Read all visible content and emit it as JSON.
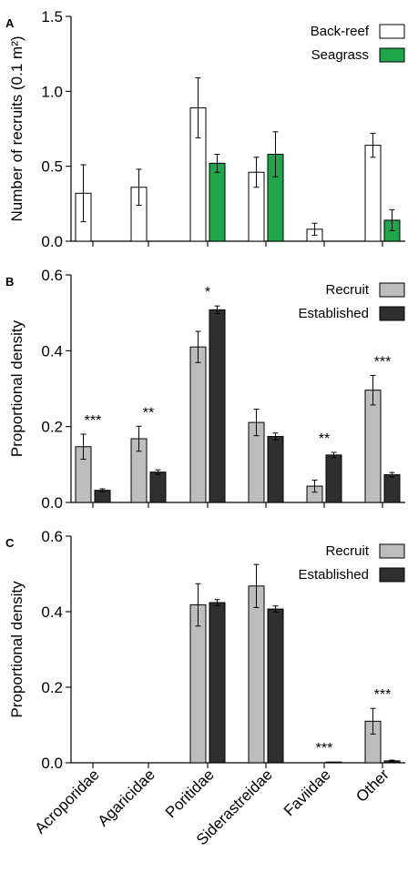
{
  "colors": {
    "back_reef": "#ffffff",
    "seagrass": "#1fa64a",
    "recruit": "#bdbdbd",
    "established": "#2f2f2f",
    "axis": "#000000"
  },
  "x_tick_labels": [
    "Acroporidae",
    "Agaricidae",
    "Poritidae",
    "Siderastreidae",
    "Faviidae",
    "Other"
  ],
  "chart_data": [
    {
      "panel_label": "A",
      "type": "bar",
      "ylabel": "Number of recruits (0.1 m²)",
      "ylim": [
        0,
        1.5
      ],
      "yticks": [
        0.0,
        0.5,
        1.0,
        1.5
      ],
      "ytick_labels": [
        "0.0",
        "0.5",
        "1.0",
        "1.5"
      ],
      "categories": [
        "Acroporidae",
        "Agaricidae",
        "Poritidae",
        "Siderastreidae",
        "Faviidae",
        "Other"
      ],
      "legend_position": "top-right",
      "series": [
        {
          "name": "Back-reef",
          "color": "#ffffff",
          "values": [
            0.32,
            0.36,
            0.89,
            0.46,
            0.08,
            0.64
          ],
          "errors": [
            0.19,
            0.12,
            0.2,
            0.1,
            0.04,
            0.08
          ]
        },
        {
          "name": "Seagrass",
          "color": "#1fa64a",
          "values": [
            0.0,
            0.0,
            0.52,
            0.58,
            0.0,
            0.14
          ],
          "errors": [
            0.0,
            0.0,
            0.06,
            0.15,
            0.0,
            0.07
          ]
        }
      ],
      "annotations": []
    },
    {
      "panel_label": "B",
      "type": "bar",
      "ylabel": "Proportional density",
      "ylim": [
        0,
        0.6
      ],
      "yticks": [
        0.0,
        0.2,
        0.4,
        0.6
      ],
      "ytick_labels": [
        "0.0",
        "0.2",
        "0.4",
        "0.6"
      ],
      "categories": [
        "Acroporidae",
        "Agaricidae",
        "Poritidae",
        "Siderastreidae",
        "Faviidae",
        "Other"
      ],
      "legend_position": "top-right",
      "series": [
        {
          "name": "Recruit",
          "color": "#bdbdbd",
          "values": [
            0.147,
            0.168,
            0.41,
            0.211,
            0.043,
            0.296
          ],
          "errors": [
            0.033,
            0.033,
            0.041,
            0.035,
            0.016,
            0.039
          ]
        },
        {
          "name": "Established",
          "color": "#2f2f2f",
          "values": [
            0.032,
            0.08,
            0.508,
            0.174,
            0.125,
            0.073
          ],
          "errors": [
            0.004,
            0.006,
            0.01,
            0.009,
            0.007,
            0.006
          ]
        }
      ],
      "annotations": [
        {
          "category": "Acroporidae",
          "text": "***"
        },
        {
          "category": "Agaricidae",
          "text": "**"
        },
        {
          "category": "Poritidae",
          "text": "*"
        },
        {
          "category": "Faviidae",
          "text": "**"
        },
        {
          "category": "Other",
          "text": "***"
        }
      ]
    },
    {
      "panel_label": "C",
      "type": "bar",
      "ylabel": "Proportional density",
      "ylim": [
        0,
        0.6
      ],
      "yticks": [
        0.0,
        0.2,
        0.4,
        0.6
      ],
      "ytick_labels": [
        "0.0",
        "0.2",
        "0.4",
        "0.6"
      ],
      "categories": [
        "Acroporidae",
        "Agaricidae",
        "Poritidae",
        "Siderastreidae",
        "Faviidae",
        "Other"
      ],
      "legend_position": "top-right",
      "series": [
        {
          "name": "Recruit",
          "color": "#bdbdbd",
          "values": [
            0.0,
            0.0,
            0.418,
            0.468,
            0.0,
            0.11
          ],
          "errors": [
            0.0,
            0.0,
            0.056,
            0.057,
            0.0,
            0.034
          ]
        },
        {
          "name": "Established",
          "color": "#2f2f2f",
          "values": [
            0.0,
            0.0,
            0.424,
            0.407,
            0.002,
            0.005
          ],
          "errors": [
            0.0,
            0.0,
            0.008,
            0.008,
            0.0,
            0.002
          ]
        }
      ],
      "annotations": [
        {
          "category": "Faviidae",
          "text": "***"
        },
        {
          "category": "Other",
          "text": "***"
        }
      ]
    }
  ]
}
